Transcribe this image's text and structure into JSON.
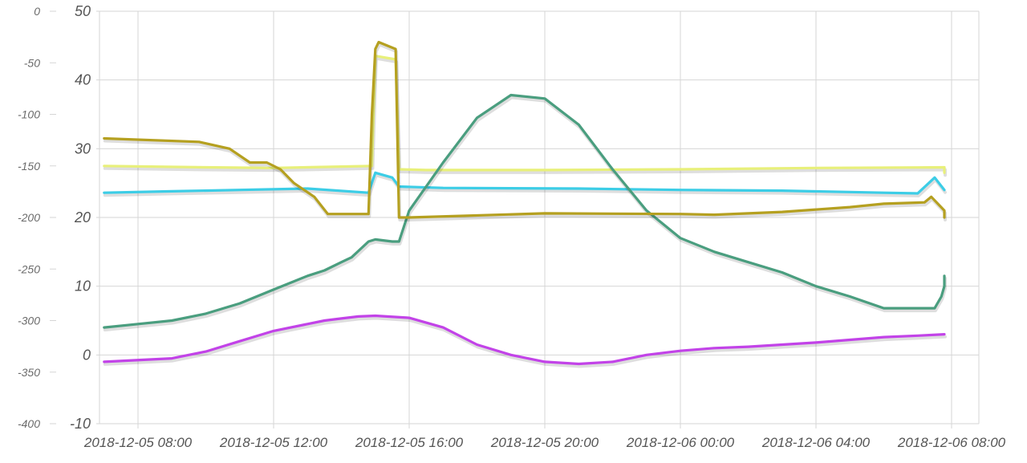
{
  "chart_data": {
    "type": "line",
    "title": "",
    "xlabel": "",
    "ylabel": "",
    "x_ticks": [
      "2018-12-05 08:00",
      "2018-12-05 12:00",
      "2018-12-05 16:00",
      "2018-12-05 20:00",
      "2018-12-06 00:00",
      "2018-12-06 04:00",
      "2018-12-06 08:00"
    ],
    "x_range_hours": [
      -1.2,
      24.8
    ],
    "y_left": {
      "ticks": [
        0,
        -50,
        -100,
        -150,
        -200,
        -250,
        -300,
        -350,
        -400
      ],
      "range": [
        -400,
        0
      ]
    },
    "y_right": {
      "ticks": [
        50,
        40,
        30,
        20,
        10,
        0,
        -10
      ],
      "range": [
        -10,
        50
      ]
    },
    "grid": true,
    "legend": "none",
    "series": [
      {
        "color": "#e8f07a",
        "axis": "right",
        "x": [
          -1,
          2,
          4,
          6,
          6.9,
          7,
          7.6,
          7.7,
          8.5,
          12,
          16,
          20,
          24,
          25
        ],
        "y": [
          27.5,
          27.3,
          27.2,
          27.4,
          27.5,
          43.5,
          43,
          27,
          26.9,
          26.9,
          27,
          27.2,
          27.3,
          26.5
        ]
      },
      {
        "color": "#3ccde6",
        "axis": "right",
        "x": [
          -1,
          1,
          3,
          5,
          6.8,
          7,
          7.5,
          7.7,
          9,
          13,
          16,
          19,
          22,
          23,
          23.5,
          24.2,
          25
        ],
        "y": [
          23.6,
          23.8,
          24,
          24.2,
          23.6,
          26.5,
          25.8,
          24.5,
          24.3,
          24.2,
          24,
          23.9,
          23.6,
          23.5,
          25.8,
          24,
          24
        ]
      },
      {
        "color": "#4a9e7f",
        "axis": "right",
        "x": [
          -1,
          0,
          1,
          2,
          3,
          4,
          4.5,
          5,
          5.5,
          6,
          6.3,
          6.8,
          7,
          7.5,
          7.7,
          8,
          9,
          10,
          11,
          12,
          13,
          14,
          15,
          16,
          17,
          18,
          19,
          20,
          21,
          22,
          23,
          23.5,
          23.7,
          24,
          24.5,
          25
        ],
        "y": [
          4,
          4.5,
          5,
          6,
          7.5,
          9.5,
          10.5,
          11.5,
          12.3,
          13.5,
          14.2,
          16.5,
          16.8,
          16.5,
          16.5,
          21,
          28,
          34.5,
          37.8,
          37.3,
          33.5,
          27,
          21,
          17,
          15,
          13.5,
          12,
          10,
          8.5,
          6.8,
          6.8,
          6.8,
          8.5,
          10,
          10.8,
          11.5
        ]
      },
      {
        "color": "#c243e8",
        "axis": "right",
        "x": [
          -1,
          1,
          2,
          3,
          4,
          5,
          5.5,
          6,
          6.5,
          7,
          8,
          9,
          10,
          11,
          12,
          13,
          14,
          15,
          16,
          17,
          18,
          19,
          20,
          21,
          22,
          23,
          24,
          25
        ],
        "y": [
          -1,
          -0.5,
          0.5,
          2,
          3.5,
          4.5,
          5,
          5.3,
          5.6,
          5.7,
          5.4,
          4,
          1.5,
          0,
          -1,
          -1.3,
          -1,
          0,
          0.6,
          1,
          1.2,
          1.5,
          1.8,
          2.2,
          2.6,
          2.8,
          3,
          3
        ]
      },
      {
        "color": "#b5a020",
        "axis": "right",
        "x": [
          -1,
          1.8,
          2.7,
          3.3,
          3.8,
          4.2,
          4.6,
          5.2,
          5.6,
          6.8,
          6.9,
          7,
          7.1,
          7.6,
          7.7,
          8,
          12,
          16,
          17,
          19,
          21,
          22,
          23.2,
          23.4,
          24,
          24.5,
          25,
          25
        ],
        "y": [
          31.5,
          31,
          30,
          28,
          28,
          27,
          25,
          23,
          20.5,
          20.5,
          35,
          44.5,
          45.5,
          44.5,
          20,
          20,
          20.6,
          20.5,
          20.4,
          20.8,
          21.5,
          22,
          22.2,
          23,
          21,
          21,
          20,
          20
        ]
      }
    ]
  }
}
